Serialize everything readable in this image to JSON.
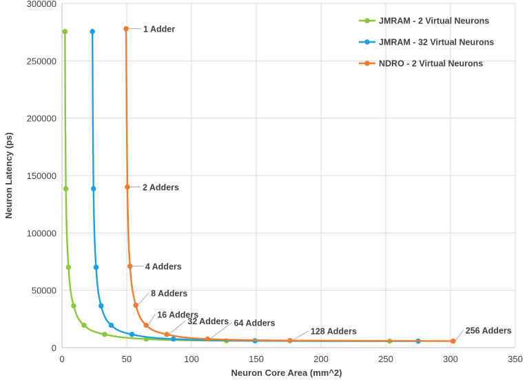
{
  "chart_data": {
    "type": "line",
    "title": "",
    "xlabel": "Neuron Core Area (mm^2)",
    "ylabel": "Neuron Latency (ps)",
    "xlim": [
      0,
      350
    ],
    "ylim": [
      0,
      300000
    ],
    "x_ticks": [
      "0",
      "50",
      "100",
      "150",
      "200",
      "250",
      "300",
      "350"
    ],
    "y_ticks": [
      "0",
      "50000",
      "100000",
      "150000",
      "200000",
      "250000",
      "300000"
    ],
    "grid": true,
    "legend_position": "top-right",
    "series": [
      {
        "name": "JMRAM - 2 Virtual Neurons",
        "color": "#8cc63f",
        "points": [
          [
            2.3,
            275500
          ],
          [
            3.0,
            138500
          ],
          [
            5.0,
            70000
          ],
          [
            9.0,
            36500
          ],
          [
            17.0,
            19500
          ],
          [
            33.0,
            11500
          ],
          [
            65.0,
            7500
          ],
          [
            127.0,
            6000
          ],
          [
            253.0,
            5700
          ]
        ]
      },
      {
        "name": "JMRAM - 32 Virtual Neurons",
        "color": "#1ea0e0",
        "points": [
          [
            23.5,
            275500
          ],
          [
            24.3,
            138500
          ],
          [
            26.3,
            70000
          ],
          [
            30.2,
            36500
          ],
          [
            38.0,
            19500
          ],
          [
            54.0,
            11500
          ],
          [
            86.0,
            7500
          ],
          [
            149.0,
            6000
          ],
          [
            275.0,
            5700
          ]
        ]
      },
      {
        "name": "NDRO - 2 Virtual Neurons",
        "color": "#ed7d31",
        "points": [
          [
            49.5,
            278000
          ],
          [
            50.5,
            140000
          ],
          [
            52.5,
            71000
          ],
          [
            57.0,
            37000
          ],
          [
            65.0,
            19500
          ],
          [
            81.0,
            11500
          ],
          [
            112.5,
            7500
          ],
          [
            176.0,
            6200
          ],
          [
            302.0,
            5700
          ]
        ]
      }
    ],
    "annotations": [
      {
        "text": "1 Adder",
        "series": 2,
        "point": 0
      },
      {
        "text": "2 Adders",
        "series": 2,
        "point": 1
      },
      {
        "text": "4 Adders",
        "series": 2,
        "point": 2
      },
      {
        "text": "8 Adders",
        "series": 2,
        "point": 3
      },
      {
        "text": "16 Adders",
        "series": 2,
        "point": 4
      },
      {
        "text": "32 Adders",
        "series": 2,
        "point": 5
      },
      {
        "text": "64 Adders",
        "series": 2,
        "point": 6
      },
      {
        "text": "128 Adders",
        "series": 2,
        "point": 7
      },
      {
        "text": "256 Adders",
        "series": 2,
        "point": 8
      }
    ]
  }
}
